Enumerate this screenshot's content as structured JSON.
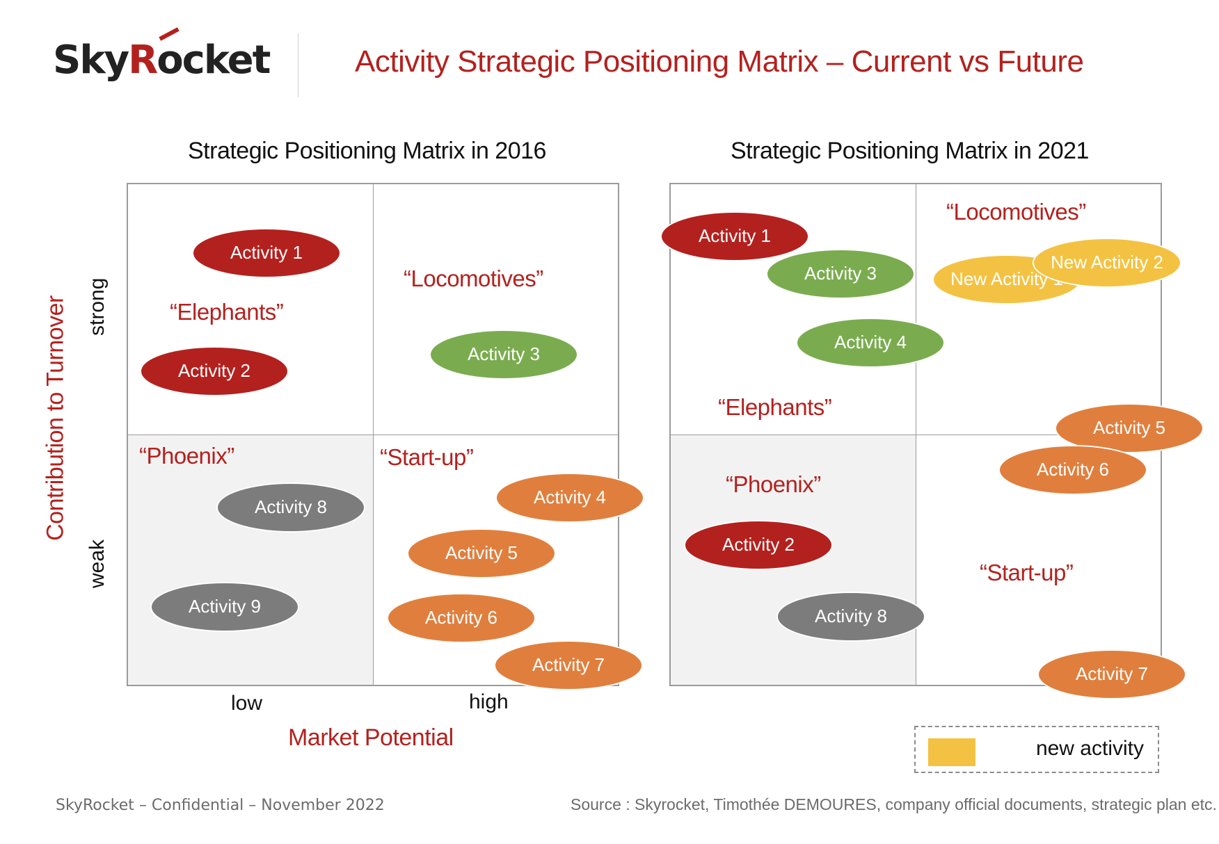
{
  "header": {
    "logo_pre": "Sky",
    "logo_r": "R",
    "logo_post": "ocket",
    "title": "Activity Strategic Positioning Matrix – Current vs Future"
  },
  "matrix_2016": {
    "title": "Strategic Positioning Matrix in 2016",
    "quadrants": {
      "elephants": "“Elephants”",
      "locomotives": "“Locomotives”",
      "phoenix": "“Phoenix”",
      "startup": "“Start-up”"
    },
    "activities": [
      {
        "label": "Activity 1",
        "color": "red"
      },
      {
        "label": "Activity 2",
        "color": "red"
      },
      {
        "label": "Activity 3",
        "color": "green"
      },
      {
        "label": "Activity 8",
        "color": "grey"
      },
      {
        "label": "Activity 9",
        "color": "grey"
      },
      {
        "label": "Activity 4",
        "color": "orange"
      },
      {
        "label": "Activity 5",
        "color": "orange"
      },
      {
        "label": "Activity 6",
        "color": "orange"
      },
      {
        "label": "Activity 7",
        "color": "orange"
      }
    ]
  },
  "matrix_2021": {
    "title": "Strategic Positioning Matrix in 2021",
    "quadrants": {
      "locomotives": "“Locomotives”",
      "elephants": "“Elephants”",
      "phoenix": "“Phoenix”",
      "startup": "“Start-up”"
    },
    "activities": [
      {
        "label": "Activity 1",
        "color": "red"
      },
      {
        "label": "Activity 3",
        "color": "green"
      },
      {
        "label": "Activity 4",
        "color": "green"
      },
      {
        "label": "New Activity 1",
        "color": "yellow"
      },
      {
        "label": "New Activity 2",
        "color": "yellow"
      },
      {
        "label": "Activity 5",
        "color": "orange"
      },
      {
        "label": "Activity 6",
        "color": "orange"
      },
      {
        "label": "Activity 2",
        "color": "red"
      },
      {
        "label": "Activity 8",
        "color": "grey"
      },
      {
        "label": "Activity 7",
        "color": "orange"
      }
    ]
  },
  "axes": {
    "y_title": "Contribution to Turnover",
    "y_strong": "strong",
    "y_weak": "weak",
    "x_low": "low",
    "x_high": "high",
    "x_title": "Market Potential"
  },
  "legend": {
    "label": "new activity"
  },
  "footer": {
    "left": "SkyRocket – Confidential – November 2022",
    "right": "Source : Skyrocket, Timothée DEMOURES, company official documents, strategic plan etc."
  },
  "colors": {
    "red": "#b3211e",
    "green": "#7aac4f",
    "orange": "#e07f3d",
    "grey": "#7c7c7c",
    "yellow": "#f4c242"
  }
}
